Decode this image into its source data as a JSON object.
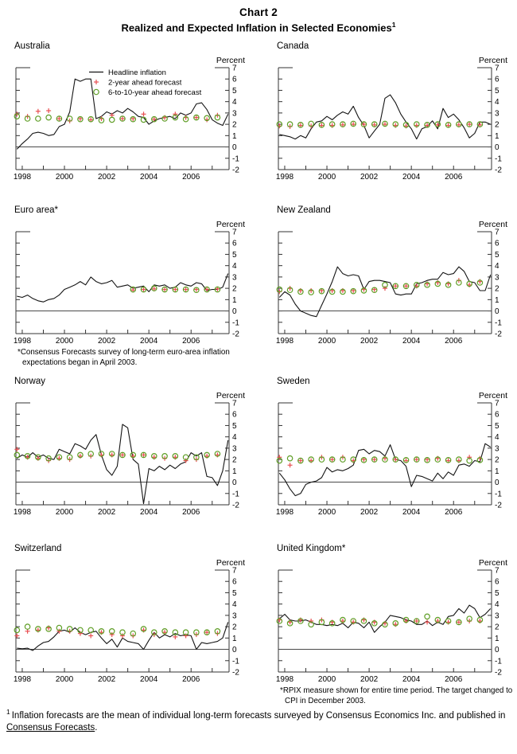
{
  "header": {
    "title": "Chart 2",
    "subtitle": "Realized and Expected Inflation in Selected Economies",
    "subtitle_superscript": "1"
  },
  "axis": {
    "unit_label": "Percent",
    "ylim": [
      -2,
      7
    ],
    "xlim": [
      1997.7,
      2007.8
    ],
    "y_ticks": [
      7,
      6,
      5,
      4,
      3,
      2,
      1,
      0,
      -1,
      -2
    ],
    "x_ticks": [
      1998,
      1999,
      2000,
      2001,
      2002,
      2003,
      2004,
      2005,
      2006,
      2007
    ],
    "x_labeled_ticks": [
      1998,
      2000,
      2002,
      2004,
      2006
    ],
    "zero_line_at": 0,
    "grid": "off",
    "y_axis_side": "right"
  },
  "legend": {
    "position": "upper-middle of Australia panel",
    "items": [
      {
        "label": "Headline inflation",
        "style": "line"
      },
      {
        "label": "2-year ahead forecast",
        "style": "plus"
      },
      {
        "label": "6-to-10-year ahead forecast",
        "style": "circle"
      }
    ]
  },
  "colors": {
    "line": "#141414",
    "plus": "#e85052",
    "circle": "#5f9e26",
    "axis": "#333333",
    "zero": "#4a4a4a"
  },
  "chart_data": [
    {
      "type": "line",
      "title": "Australia",
      "has_legend": true,
      "series": [
        {
          "name": "Headline inflation",
          "style": "line",
          "x_start": 1997.75,
          "x_step": 0.25,
          "y": [
            -0.2,
            0.3,
            0.7,
            1.2,
            1.3,
            1.2,
            1.0,
            1.1,
            1.8,
            2.0,
            3.1,
            6.0,
            5.8,
            6.0,
            6.0,
            2.5,
            2.7,
            3.1,
            2.9,
            3.2,
            3.0,
            3.4,
            3.1,
            2.7,
            2.6,
            2.0,
            2.3,
            2.5,
            2.6,
            2.7,
            2.5,
            3.0,
            2.8,
            3.0,
            3.8,
            3.9,
            3.3,
            2.4,
            2.1,
            1.9,
            2.9
          ]
        },
        {
          "name": "2-year ahead forecast",
          "style": "plus",
          "x_start": 1997.75,
          "x_step": 0.5,
          "y": [
            2.9,
            2.7,
            3.15,
            3.2,
            2.5,
            2.3,
            2.5,
            2.4,
            2.5,
            2.8,
            2.5,
            2.5,
            2.9,
            2.45,
            2.6,
            2.9,
            2.6,
            2.6,
            2.4,
            2.8
          ]
        },
        {
          "name": "6-to-10-year ahead forecast",
          "style": "circle",
          "x_start": 1997.75,
          "x_step": 0.5,
          "y": [
            2.7,
            2.5,
            2.5,
            2.6,
            2.5,
            2.5,
            2.45,
            2.45,
            2.35,
            2.4,
            2.5,
            2.45,
            2.4,
            2.45,
            2.5,
            2.6,
            2.45,
            2.6,
            2.55,
            2.6
          ]
        }
      ]
    },
    {
      "type": "line",
      "title": "Canada",
      "series": [
        {
          "name": "Headline inflation",
          "style": "line",
          "x_start": 1997.75,
          "x_step": 0.25,
          "y": [
            1.1,
            1.0,
            0.9,
            0.7,
            1.0,
            0.8,
            1.6,
            2.2,
            2.3,
            2.7,
            2.4,
            2.8,
            3.1,
            2.9,
            3.6,
            2.6,
            1.9,
            0.8,
            1.4,
            2.0,
            4.3,
            4.6,
            3.9,
            2.9,
            2.2,
            1.6,
            0.7,
            1.6,
            1.8,
            2.3,
            1.6,
            3.4,
            2.6,
            2.9,
            2.4,
            1.7,
            0.8,
            1.2,
            2.2,
            2.2,
            2.0
          ]
        },
        {
          "name": "2-year ahead forecast",
          "style": "plus",
          "x_start": 1997.75,
          "x_step": 0.5,
          "y": [
            1.85,
            1.8,
            1.9,
            1.85,
            1.9,
            1.9,
            1.95,
            2.0,
            2.0,
            1.95,
            2.0,
            1.9,
            1.85,
            1.9,
            1.9,
            1.95,
            1.9,
            1.95,
            2.0,
            1.95
          ]
        },
        {
          "name": "6-to-10-year ahead forecast",
          "style": "circle",
          "x_start": 1997.75,
          "x_step": 0.5,
          "y": [
            2.0,
            2.0,
            1.95,
            2.05,
            1.95,
            2.0,
            2.0,
            2.05,
            2.0,
            2.0,
            2.05,
            2.0,
            1.95,
            2.0,
            1.95,
            2.0,
            1.95,
            2.0,
            2.0,
            2.0
          ]
        }
      ]
    },
    {
      "type": "line",
      "title": "Euro area*",
      "footnote": "*Consensus Forecasts survey of long-term euro-area inflation expectations began in April 2003.",
      "series": [
        {
          "name": "Headline inflation",
          "style": "line",
          "x_start": 1997.75,
          "x_step": 0.25,
          "y": [
            1.3,
            1.2,
            1.4,
            1.1,
            0.9,
            0.8,
            1.0,
            1.1,
            1.4,
            1.9,
            2.1,
            2.3,
            2.6,
            2.3,
            3.0,
            2.6,
            2.4,
            2.5,
            2.7,
            2.1,
            2.2,
            2.3,
            2.0,
            2.1,
            2.2,
            1.7,
            2.3,
            2.2,
            2.3,
            2.0,
            2.1,
            2.5,
            2.3,
            2.2,
            2.5,
            2.4,
            1.8,
            1.9,
            1.9,
            2.1,
            3.3
          ]
        },
        {
          "name": "2-year ahead forecast",
          "style": "plus",
          "x_start": 2003.25,
          "x_step": 0.5,
          "y": [
            1.85,
            1.9,
            1.95,
            1.9,
            1.9,
            1.9,
            1.9,
            1.9,
            1.95
          ]
        },
        {
          "name": "6-to-10-year ahead forecast",
          "style": "circle",
          "x_start": 2003.25,
          "x_step": 0.5,
          "y": [
            1.9,
            1.9,
            2.0,
            1.9,
            1.9,
            1.9,
            1.85,
            1.9,
            1.9
          ]
        }
      ]
    },
    {
      "type": "line",
      "title": "New Zealand",
      "series": [
        {
          "name": "Headline inflation",
          "style": "line",
          "x_start": 1997.75,
          "x_step": 0.25,
          "y": [
            1.2,
            1.7,
            1.4,
            0.6,
            0.0,
            -0.2,
            -0.4,
            -0.5,
            0.5,
            1.5,
            2.6,
            3.9,
            3.3,
            3.1,
            3.2,
            3.1,
            1.9,
            2.6,
            2.7,
            2.7,
            2.6,
            2.5,
            1.5,
            1.4,
            1.5,
            1.5,
            2.4,
            2.5,
            2.7,
            2.8,
            2.8,
            3.4,
            3.2,
            3.3,
            3.9,
            3.5,
            2.6,
            2.5,
            1.8,
            1.8,
            3.2
          ]
        },
        {
          "name": "2-year ahead forecast",
          "style": "plus",
          "x_start": 1997.75,
          "x_step": 0.5,
          "y": [
            1.7,
            2.0,
            1.8,
            1.8,
            1.8,
            1.8,
            1.8,
            1.8,
            1.9,
            1.9,
            2.0,
            2.2,
            2.2,
            2.2,
            2.4,
            2.5,
            2.4,
            2.7,
            2.3,
            2.6
          ]
        },
        {
          "name": "6-to-10-year ahead forecast",
          "style": "circle",
          "x_start": 1997.75,
          "x_step": 0.5,
          "y": [
            1.9,
            1.85,
            1.7,
            1.65,
            1.75,
            1.7,
            1.7,
            1.75,
            1.8,
            1.85,
            2.3,
            2.2,
            2.2,
            2.3,
            2.3,
            2.4,
            2.3,
            2.5,
            2.4,
            2.5
          ]
        }
      ]
    },
    {
      "type": "line",
      "title": "Norway",
      "series": [
        {
          "name": "Headline inflation",
          "style": "line",
          "x_start": 1997.75,
          "x_step": 0.25,
          "y": [
            2.1,
            2.4,
            2.2,
            2.6,
            2.2,
            2.4,
            2.1,
            2.0,
            2.9,
            2.7,
            2.5,
            3.4,
            3.2,
            2.9,
            3.7,
            4.2,
            2.4,
            1.1,
            0.6,
            1.4,
            5.1,
            4.8,
            2.0,
            1.6,
            -1.9,
            1.2,
            1.0,
            1.4,
            1.1,
            1.5,
            1.2,
            1.6,
            1.8,
            2.6,
            2.3,
            2.6,
            0.5,
            0.4,
            -0.3,
            1.0,
            3.7
          ]
        },
        {
          "name": "2-year ahead forecast",
          "style": "plus",
          "x_start": 1997.75,
          "x_step": 0.5,
          "y": [
            2.9,
            2.2,
            2.1,
            1.9,
            2.1,
            2.0,
            2.3,
            2.3,
            2.4,
            2.4,
            2.4,
            2.3,
            2.4,
            2.2,
            2.1,
            2.2,
            1.9,
            2.0,
            2.3,
            2.4
          ]
        },
        {
          "name": "6-to-10-year ahead forecast",
          "style": "circle",
          "x_start": 1997.75,
          "x_step": 0.5,
          "y": [
            2.4,
            2.3,
            2.2,
            2.1,
            2.2,
            2.2,
            2.4,
            2.5,
            2.5,
            2.5,
            2.4,
            2.4,
            2.4,
            2.3,
            2.3,
            2.3,
            2.2,
            2.2,
            2.4,
            2.5
          ]
        }
      ]
    },
    {
      "type": "line",
      "title": "Sweden",
      "series": [
        {
          "name": "Headline inflation",
          "style": "line",
          "x_start": 1997.75,
          "x_step": 0.25,
          "y": [
            0.8,
            0.2,
            -0.6,
            -1.2,
            -1.0,
            -0.2,
            0.0,
            0.1,
            0.4,
            1.3,
            0.9,
            1.1,
            1.0,
            1.2,
            1.5,
            2.8,
            2.9,
            2.5,
            2.8,
            2.7,
            2.3,
            3.3,
            2.0,
            1.9,
            1.4,
            -0.4,
            0.6,
            0.5,
            0.3,
            0.1,
            0.8,
            0.3,
            0.9,
            0.6,
            1.5,
            1.6,
            1.4,
            1.9,
            1.8,
            3.4,
            3.1
          ]
        },
        {
          "name": "2-year ahead forecast",
          "style": "plus",
          "x_start": 1997.75,
          "x_step": 0.5,
          "y": [
            2.2,
            1.5,
            1.9,
            1.9,
            2.2,
            2.0,
            2.2,
            1.9,
            2.0,
            2.0,
            2.1,
            2.0,
            1.9,
            2.0,
            2.0,
            2.1,
            1.9,
            1.9,
            2.2,
            2.1
          ]
        },
        {
          "name": "6-to-10-year ahead forecast",
          "style": "circle",
          "x_start": 1997.75,
          "x_step": 0.5,
          "y": [
            1.9,
            2.1,
            1.9,
            2.0,
            2.0,
            2.0,
            2.0,
            2.0,
            1.95,
            2.0,
            2.0,
            2.0,
            1.95,
            2.0,
            1.95,
            2.0,
            1.95,
            2.0,
            1.9,
            1.95
          ]
        }
      ]
    },
    {
      "type": "line",
      "title": "Switzerland",
      "series": [
        {
          "name": "Headline inflation",
          "style": "line",
          "x_start": 1997.75,
          "x_step": 0.25,
          "y": [
            0.1,
            0.05,
            0.1,
            -0.1,
            0.3,
            0.6,
            0.7,
            1.1,
            1.6,
            1.7,
            1.5,
            1.9,
            1.5,
            1.3,
            1.5,
            1.6,
            1.0,
            0.5,
            0.9,
            0.2,
            1.0,
            0.7,
            0.6,
            0.5,
            0.0,
            0.8,
            1.5,
            1.0,
            1.3,
            1.1,
            1.4,
            1.2,
            1.3,
            1.2,
            0.0,
            0.6,
            0.5,
            0.6,
            0.7,
            1.0,
            2.4
          ]
        },
        {
          "name": "2-year ahead forecast",
          "style": "plus",
          "x_start": 1997.75,
          "x_step": 0.5,
          "y": [
            1.2,
            1.6,
            1.7,
            1.9,
            1.6,
            1.6,
            1.4,
            1.2,
            1.5,
            1.3,
            1.2,
            1.2,
            1.7,
            1.3,
            1.5,
            1.1,
            1.2,
            1.3,
            1.5,
            1.4
          ]
        },
        {
          "name": "6-to-10-year ahead forecast",
          "style": "circle",
          "x_start": 1997.75,
          "x_step": 0.5,
          "y": [
            1.7,
            2.0,
            1.8,
            1.8,
            1.9,
            1.8,
            1.7,
            1.7,
            1.6,
            1.6,
            1.5,
            1.4,
            1.8,
            1.5,
            1.6,
            1.5,
            1.5,
            1.5,
            1.5,
            1.6
          ]
        }
      ]
    },
    {
      "type": "line",
      "title": "United Kingdom*",
      "footnote": "*RPIX measure shown for entire time period. The target changed to CPI in December 2003.",
      "series": [
        {
          "name": "Headline inflation",
          "style": "line",
          "x_start": 1997.75,
          "x_step": 0.25,
          "y": [
            2.7,
            3.1,
            2.6,
            2.5,
            2.5,
            2.6,
            2.4,
            2.2,
            2.2,
            2.1,
            2.2,
            2.1,
            2.3,
            1.9,
            2.4,
            2.3,
            1.9,
            2.4,
            1.5,
            2.0,
            2.4,
            3.0,
            2.9,
            2.8,
            2.6,
            2.5,
            2.2,
            2.2,
            2.5,
            2.1,
            2.4,
            2.2,
            2.9,
            3.0,
            3.6,
            3.2,
            3.9,
            3.6,
            2.8,
            3.1,
            3.6
          ]
        },
        {
          "name": "2-year ahead forecast",
          "style": "plus",
          "x_start": 1997.75,
          "x_step": 0.5,
          "y": [
            2.6,
            2.4,
            2.6,
            2.5,
            2.6,
            2.4,
            2.5,
            2.4,
            2.6,
            2.4,
            2.3,
            2.2,
            2.5,
            2.5,
            2.4,
            2.5,
            2.4,
            2.4,
            2.5,
            2.5
          ]
        },
        {
          "name": "6-to-10-year ahead forecast",
          "style": "circle",
          "x_start": 1997.75,
          "x_step": 0.5,
          "y": [
            2.5,
            2.3,
            2.5,
            2.2,
            2.4,
            2.3,
            2.6,
            2.5,
            2.5,
            2.3,
            2.2,
            2.3,
            2.6,
            2.5,
            2.9,
            2.6,
            2.5,
            2.4,
            2.7,
            2.6
          ]
        }
      ]
    }
  ],
  "footnote": {
    "marker": "1",
    "text_before": "Inflation forecasts are the mean of individual long-term forecasts surveyed by Consensus Economics Inc. and published in ",
    "underlined": "Consensus Forecasts",
    "text_after": "."
  }
}
